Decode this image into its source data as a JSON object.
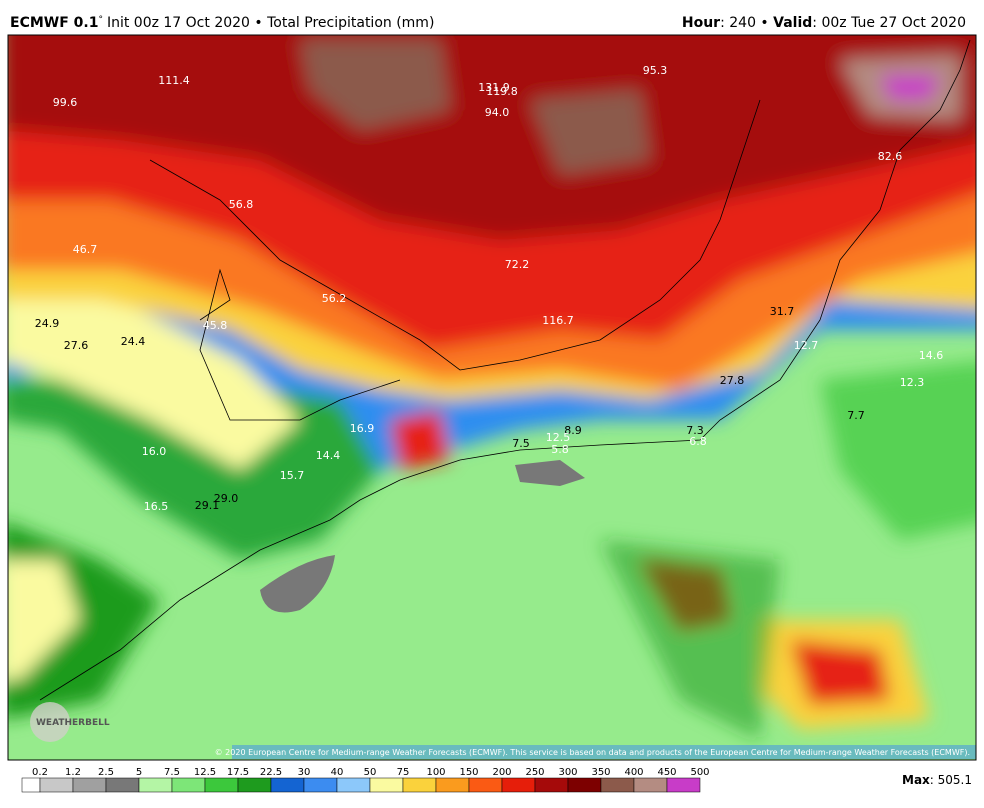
{
  "header": {
    "model": "ECMWF 0.1",
    "degree": "°",
    "init": "Init 00z 17 Oct 2020 • Total Precipitation (mm)",
    "hour_label": "Hour",
    "hour": 240,
    "valid_label": "Valid",
    "valid": "00z Tue 27 Oct 2020"
  },
  "map": {
    "labels": [
      "111.4",
      "99.6",
      "131.9",
      "119.8",
      "94.0",
      "95.3",
      "82.6",
      "56.8",
      "46.7",
      "72.2",
      "56.2",
      "116.7",
      "31.7",
      "24.9",
      "27.6",
      "24.4",
      "45.8",
      "12.7",
      "14.6",
      "12.3",
      "27.8",
      "7.7",
      "16.9",
      "8.9",
      "12.5",
      "7.5",
      "5.8",
      "7.3",
      "6.8",
      "16.0",
      "14.4",
      "15.7",
      "29.0",
      "29.1",
      "16.5"
    ],
    "copyright": "© 2020 European Centre for Medium-range Weather Forecasts (ECMWF). This service is based on data and products of the European Centre for Medium-range Weather Forecasts (ECMWF).",
    "logo": "WEATHERBELL"
  },
  "colorbar": {
    "ticks": [
      0.2,
      1.2,
      2.5,
      5,
      7.5,
      12.5,
      17.5,
      22.5,
      30,
      40,
      50,
      75,
      100,
      150,
      200,
      250,
      300,
      350,
      400,
      450,
      500
    ],
    "colors": [
      "#ffffff",
      "#c8c8c8",
      "#a0a0a0",
      "#787878",
      "#b4f5a5",
      "#7de678",
      "#3cc83c",
      "#1e9b1e",
      "#1464d2",
      "#3c8cf0",
      "#8cc8fa",
      "#fafaa0",
      "#fad23c",
      "#fa9b1e",
      "#fa5a14",
      "#e61e0a",
      "#a50a0a",
      "#7d0000",
      "#8c5a4b",
      "#b48c82",
      "#c83cc8"
    ],
    "max_label": "Max",
    "max_value": 505.1
  }
}
